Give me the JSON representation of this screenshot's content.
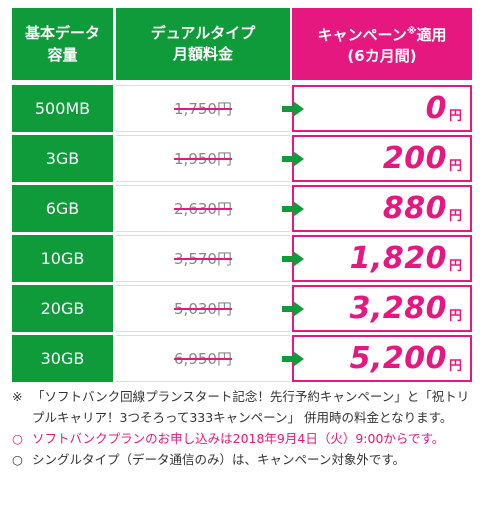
{
  "header": {
    "col1": [
      "基本データ",
      "容量"
    ],
    "col2": [
      "デュアルタイプ",
      "月額料金"
    ],
    "col3_line1": "キャンペーン",
    "col3_sup": "※",
    "col3_line1b": "適用",
    "col3_line2": "(6カ月間)"
  },
  "rows": [
    {
      "capacity": "500MB",
      "old_price": "1,750円",
      "price": "0",
      "yen": "円"
    },
    {
      "capacity": "3GB",
      "old_price": "1,950円",
      "price": "200",
      "yen": "円"
    },
    {
      "capacity": "6GB",
      "old_price": "2,630円",
      "price": "880",
      "yen": "円"
    },
    {
      "capacity": "10GB",
      "old_price": "3,570円",
      "price": "1,820",
      "yen": "円"
    },
    {
      "capacity": "20GB",
      "old_price": "5,030円",
      "price": "3,280",
      "yen": "円"
    },
    {
      "capacity": "30GB",
      "old_price": "6,950円",
      "price": "5,200",
      "yen": "円"
    }
  ],
  "notes": [
    {
      "mark": "※",
      "text": "「ソフトバンク回線プランスタート記念！先行予約キャンペーン」と「祝トリプルキャリア！3つそろって333キャンペーン」 併用時の料金となります。"
    },
    {
      "mark": "○",
      "text": "ソフトバンクプランのお申し込みは2018年9月4日（火）9:00からです。"
    },
    {
      "mark": "○",
      "text": "シングルタイプ（データ通信のみ）は、キャンペーン対象外です。"
    }
  ],
  "colors": {
    "green": "#0f9b3a",
    "pink": "#e5187f"
  }
}
